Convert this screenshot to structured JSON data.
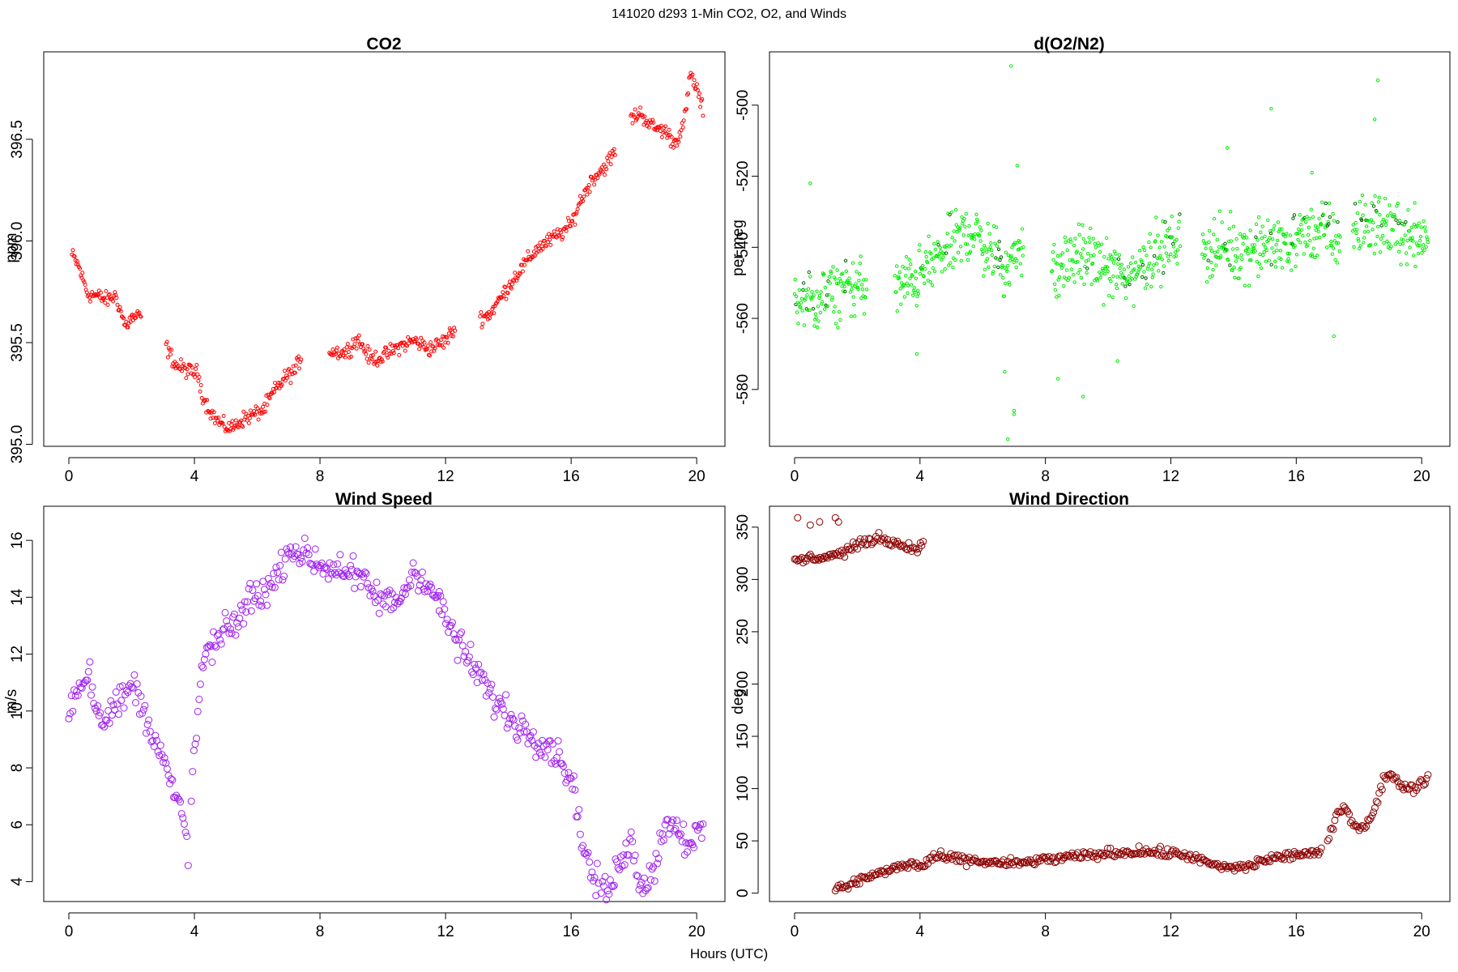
{
  "figure": {
    "title": "141020   d293   1-Min CO2, O2, and Winds",
    "xlabel": "Hours (UTC)"
  },
  "chart_data": [
    {
      "type": "scatter",
      "title": "CO2",
      "ylabel": "ppm",
      "xlim": [
        -0.8,
        20.9
      ],
      "ylim": [
        394.99,
        396.93
      ],
      "xticks": [
        0,
        4,
        8,
        12,
        16,
        20
      ],
      "yticks": [
        395.0,
        395.5,
        396.0,
        396.5
      ],
      "ytick_labels": [
        "395.0",
        "395.5",
        "396.0",
        "396.5"
      ],
      "marker_color": "#ff0000",
      "marker_radius": 2.0,
      "segments": [
        {
          "x": [
            0.1,
            0.3,
            0.6,
            0.9,
            1.2,
            1.5,
            1.8,
            2.0,
            2.3
          ],
          "y": [
            395.93,
            395.88,
            395.74,
            395.73,
            395.71,
            395.73,
            395.58,
            395.62,
            395.63
          ]
        },
        {
          "x": [
            3.1,
            3.4,
            3.8,
            4.1,
            4.3,
            4.6,
            4.9,
            5.2,
            5.5,
            5.8,
            6.2,
            6.5,
            6.9,
            7.2,
            7.4
          ],
          "y": [
            395.48,
            395.39,
            395.36,
            395.35,
            395.22,
            395.14,
            395.09,
            395.08,
            395.12,
            395.14,
            395.17,
            395.25,
            395.33,
            395.36,
            395.43
          ]
        },
        {
          "x": [
            8.3,
            8.8,
            9.2,
            9.6,
            10.0,
            10.5,
            11.0,
            11.5,
            12.0,
            12.3
          ],
          "y": [
            395.46,
            395.45,
            395.52,
            395.42,
            395.43,
            395.48,
            395.51,
            395.47,
            395.51,
            395.57
          ]
        },
        {
          "x": [
            13.1,
            13.4,
            13.8,
            14.2,
            14.5,
            14.9,
            15.3,
            15.7,
            16.0,
            16.3,
            16.7,
            17.1,
            17.4
          ],
          "y": [
            395.62,
            395.64,
            395.73,
            395.82,
            395.88,
            395.96,
            396.0,
            396.04,
            396.08,
            396.2,
            396.31,
            396.37,
            396.44
          ]
        },
        {
          "x": [
            17.9,
            18.2,
            18.6,
            19.0,
            19.3,
            19.6,
            19.8,
            20.0,
            20.2
          ],
          "y": [
            396.6,
            396.63,
            396.56,
            396.54,
            396.48,
            396.58,
            396.82,
            396.75,
            396.64
          ]
        }
      ],
      "jitter": 0.03,
      "density": 36
    },
    {
      "type": "scatter",
      "title": "d(O2/N2)",
      "ylabel": "per meg",
      "xlim": [
        -0.8,
        20.9
      ],
      "ylim": [
        -596,
        -485
      ],
      "xticks": [
        0,
        4,
        8,
        12,
        16,
        20
      ],
      "yticks": [
        -580,
        -560,
        -540,
        -520,
        -500
      ],
      "ytick_labels": [
        "-580",
        "-560",
        "-540",
        "-520",
        "-500"
      ],
      "marker_color": "#00ee00",
      "accent_color": "#006400",
      "marker_radius": 1.7,
      "segments": [
        {
          "x": [
            0.0,
            0.6,
            1.2,
            1.8,
            2.3
          ],
          "y": [
            -555,
            -556,
            -553,
            -551,
            -551
          ]
        },
        {
          "x": [
            3.2,
            4.0,
            4.8,
            5.6,
            6.2,
            6.8,
            7.3
          ],
          "y": [
            -552,
            -548,
            -541,
            -535,
            -541,
            -546,
            -538
          ]
        },
        {
          "x": [
            8.2,
            9.0,
            9.8,
            10.6,
            11.4,
            12.3
          ],
          "y": [
            -548,
            -542,
            -545,
            -549,
            -542,
            -538
          ]
        },
        {
          "x": [
            13.0,
            14.0,
            15.0,
            16.0,
            16.8,
            17.4
          ],
          "y": [
            -540,
            -541,
            -540,
            -538,
            -535,
            -538
          ]
        },
        {
          "x": [
            17.8,
            18.6,
            19.4,
            20.2
          ],
          "y": [
            -535,
            -533,
            -536,
            -537
          ]
        }
      ],
      "jitter": 6.5,
      "density": 52,
      "outliers": {
        "x": [
          0.5,
          6.9,
          7.0,
          7.1,
          6.8,
          8.4,
          9.2,
          10.3,
          13.8,
          15.2,
          16.5,
          17.2,
          18.6,
          18.5,
          3.9,
          6.7,
          7.0
        ],
        "y": [
          -522,
          -489,
          -586,
          -517,
          -594,
          -577,
          -582,
          -572,
          -512,
          -501,
          -519,
          -565,
          -493,
          -504,
          -570,
          -575,
          -587
        ]
      }
    },
    {
      "type": "scatter",
      "title": "Wind Speed",
      "ylabel": "m/s",
      "xlim": [
        -0.8,
        20.9
      ],
      "ylim": [
        3.3,
        17.2
      ],
      "xticks": [
        0,
        4,
        8,
        12,
        16,
        20
      ],
      "yticks": [
        4,
        6,
        8,
        10,
        12,
        14,
        16
      ],
      "ytick_labels": [
        "4",
        "6",
        "8",
        "10",
        "12",
        "14",
        "16"
      ],
      "marker_color": "#a020f0",
      "marker_radius": 4.0,
      "segments": [
        {
          "x": [
            0.0,
            0.3,
            0.6,
            0.9,
            1.2,
            1.5,
            1.8,
            2.1,
            2.4,
            2.7,
            3.0,
            3.3,
            3.6,
            3.8
          ],
          "y": [
            10.0,
            10.8,
            11.5,
            10.0,
            9.8,
            10.2,
            10.5,
            11.0,
            9.8,
            9.3,
            8.3,
            7.2,
            6.3,
            5.2
          ]
        },
        {
          "x": [
            3.9,
            4.1,
            4.3,
            4.6,
            5.0,
            5.4,
            5.8,
            6.2,
            6.6,
            7.0,
            7.4,
            7.8,
            8.2,
            8.6,
            9.0,
            9.4,
            9.8,
            10.2,
            10.6,
            11.0,
            11.4,
            11.8
          ],
          "y": [
            7.0,
            9.8,
            12.0,
            12.2,
            12.8,
            13.2,
            14.0,
            14.2,
            14.6,
            15.8,
            15.5,
            15.3,
            15.0,
            15.1,
            14.8,
            14.5,
            14.0,
            13.8,
            14.0,
            15.0,
            14.5,
            13.8
          ]
        },
        {
          "x": [
            11.8,
            12.2,
            12.6,
            13.0,
            13.4,
            13.8,
            14.2,
            14.6,
            15.0,
            15.4,
            15.8,
            16.1,
            16.4,
            16.7,
            17.0,
            17.3,
            17.6,
            17.9,
            18.2,
            18.5,
            18.8,
            19.1,
            19.4,
            19.7,
            20.0,
            20.2
          ],
          "y": [
            13.8,
            12.8,
            12.0,
            11.4,
            10.6,
            10.1,
            9.6,
            9.3,
            9.0,
            8.7,
            8.1,
            7.2,
            5.2,
            4.1,
            3.6,
            3.8,
            5.0,
            5.4,
            4.0,
            4.1,
            5.2,
            6.2,
            5.9,
            5.4,
            5.6,
            5.7
          ]
        }
      ],
      "jitter": 0.45,
      "density": 24
    },
    {
      "type": "scatter",
      "title": "Wind Direction",
      "ylabel": "deg",
      "xlim": [
        -0.8,
        20.9
      ],
      "ylim": [
        -8,
        370
      ],
      "xticks": [
        0,
        4,
        8,
        12,
        16,
        20
      ],
      "yticks": [
        0,
        50,
        100,
        150,
        200,
        250,
        300,
        350
      ],
      "ytick_labels": [
        "0",
        "50",
        "100",
        "150",
        "200",
        "250",
        "300",
        "350"
      ],
      "marker_color": "#8b0000",
      "marker_radius": 4.0,
      "segments": [
        {
          "x": [
            0.0,
            0.5,
            1.0,
            1.5,
            1.8,
            2.2,
            2.7,
            3.2,
            3.7,
            4.1
          ],
          "y": [
            318,
            320,
            322,
            325,
            330,
            335,
            340,
            335,
            330,
            332
          ]
        },
        {
          "x": [
            1.3,
            1.8,
            2.3,
            2.8,
            3.3,
            3.8,
            4.1,
            4.4,
            5.0,
            6.0,
            7.0,
            8.0,
            9.0,
            10.0,
            11.0,
            12.0,
            12.6,
            13.2,
            13.8,
            14.4,
            15.0,
            15.6,
            16.2,
            16.8
          ],
          "y": [
            5,
            8,
            15,
            20,
            25,
            28,
            25,
            35,
            33,
            30,
            28,
            32,
            35,
            38,
            40,
            38,
            36,
            28,
            24,
            25,
            32,
            35,
            38,
            38
          ]
        },
        {
          "x": [
            17.0,
            17.3,
            17.6,
            17.9,
            18.2,
            18.5,
            18.8,
            19.1,
            19.4,
            19.7,
            20.0,
            20.2
          ],
          "y": [
            50,
            75,
            82,
            62,
            65,
            80,
            110,
            112,
            102,
            100,
            106,
            110
          ]
        }
      ],
      "jitter": 3.5,
      "density": 22,
      "outliers": {
        "x": [
          0.1,
          0.5,
          0.8,
          1.3,
          1.4
        ],
        "y": [
          359,
          352,
          355,
          359,
          355
        ]
      }
    }
  ]
}
